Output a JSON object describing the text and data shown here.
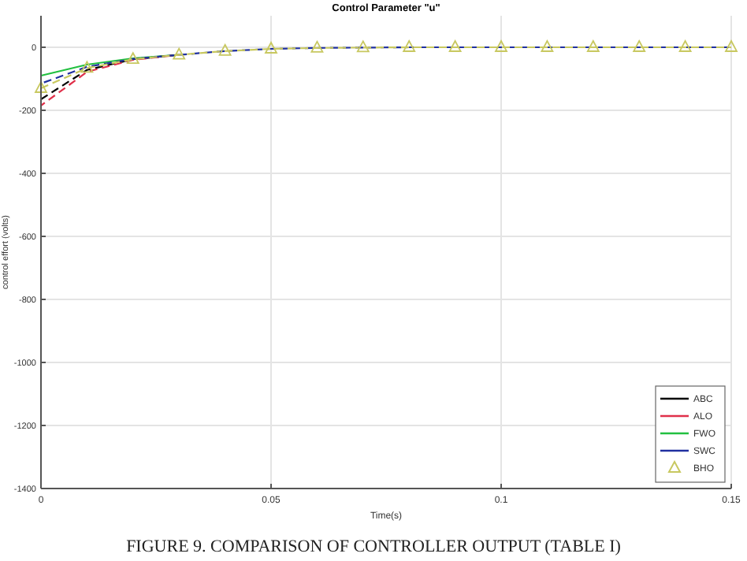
{
  "chart_data": {
    "type": "line",
    "title": "Control Parameter \"u\"",
    "xlabel": "Time(s)",
    "ylabel": "control effort (volts)",
    "annotations": [
      "FIGURE 9. COMPARISON OF CONTROLLER OUTPUT (TABLE I)"
    ],
    "x": [
      0,
      0.01,
      0.02,
      0.03,
      0.04,
      0.05,
      0.06,
      0.07,
      0.08,
      0.09,
      0.1,
      0.11,
      0.12,
      0.13,
      0.14,
      0.15
    ],
    "series": [
      {
        "name": "ABC",
        "color": "#000000",
        "line_style": "dashed",
        "values": [
          -165,
          -72,
          -38,
          -24,
          null,
          null,
          null,
          null,
          null,
          null,
          null,
          null,
          null,
          null,
          null,
          null
        ]
      },
      {
        "name": "ALO",
        "color": "#e0304a",
        "line_style": "dashed",
        "values": [
          -185,
          -78,
          -40,
          -24,
          null,
          null,
          null,
          null,
          null,
          null,
          null,
          null,
          null,
          null,
          null,
          null
        ]
      },
      {
        "name": "FWO",
        "color": "#22c040",
        "values": [
          -90,
          -55,
          -35,
          -24,
          null,
          null,
          null,
          null,
          null,
          null,
          null,
          null,
          null,
          null,
          null,
          null
        ]
      },
      {
        "name": "SWC",
        "color": "#2030a0",
        "line_style": "dashed",
        "values": [
          -115,
          -62,
          -37,
          -24,
          -12,
          -5,
          -2,
          -1,
          0,
          0,
          0,
          0,
          0,
          0,
          0,
          0
        ]
      },
      {
        "name": "BHO",
        "color": "#c8c860",
        "line_style": "dashed",
        "marker": "triangle",
        "values": [
          -130,
          -66,
          -38,
          -24,
          -12,
          -5,
          -2,
          -1,
          0,
          0,
          0,
          0,
          0,
          0,
          0,
          0
        ]
      }
    ],
    "xlim": [
      0,
      0.15
    ],
    "xticks": [
      0,
      0.05,
      0.1,
      0.15
    ],
    "ylim": [
      -1400,
      100
    ],
    "yticks": [
      0,
      -200,
      -400,
      -600,
      -800,
      -1000,
      -1200,
      -1400
    ],
    "grid": true,
    "legend": "bottom right"
  }
}
